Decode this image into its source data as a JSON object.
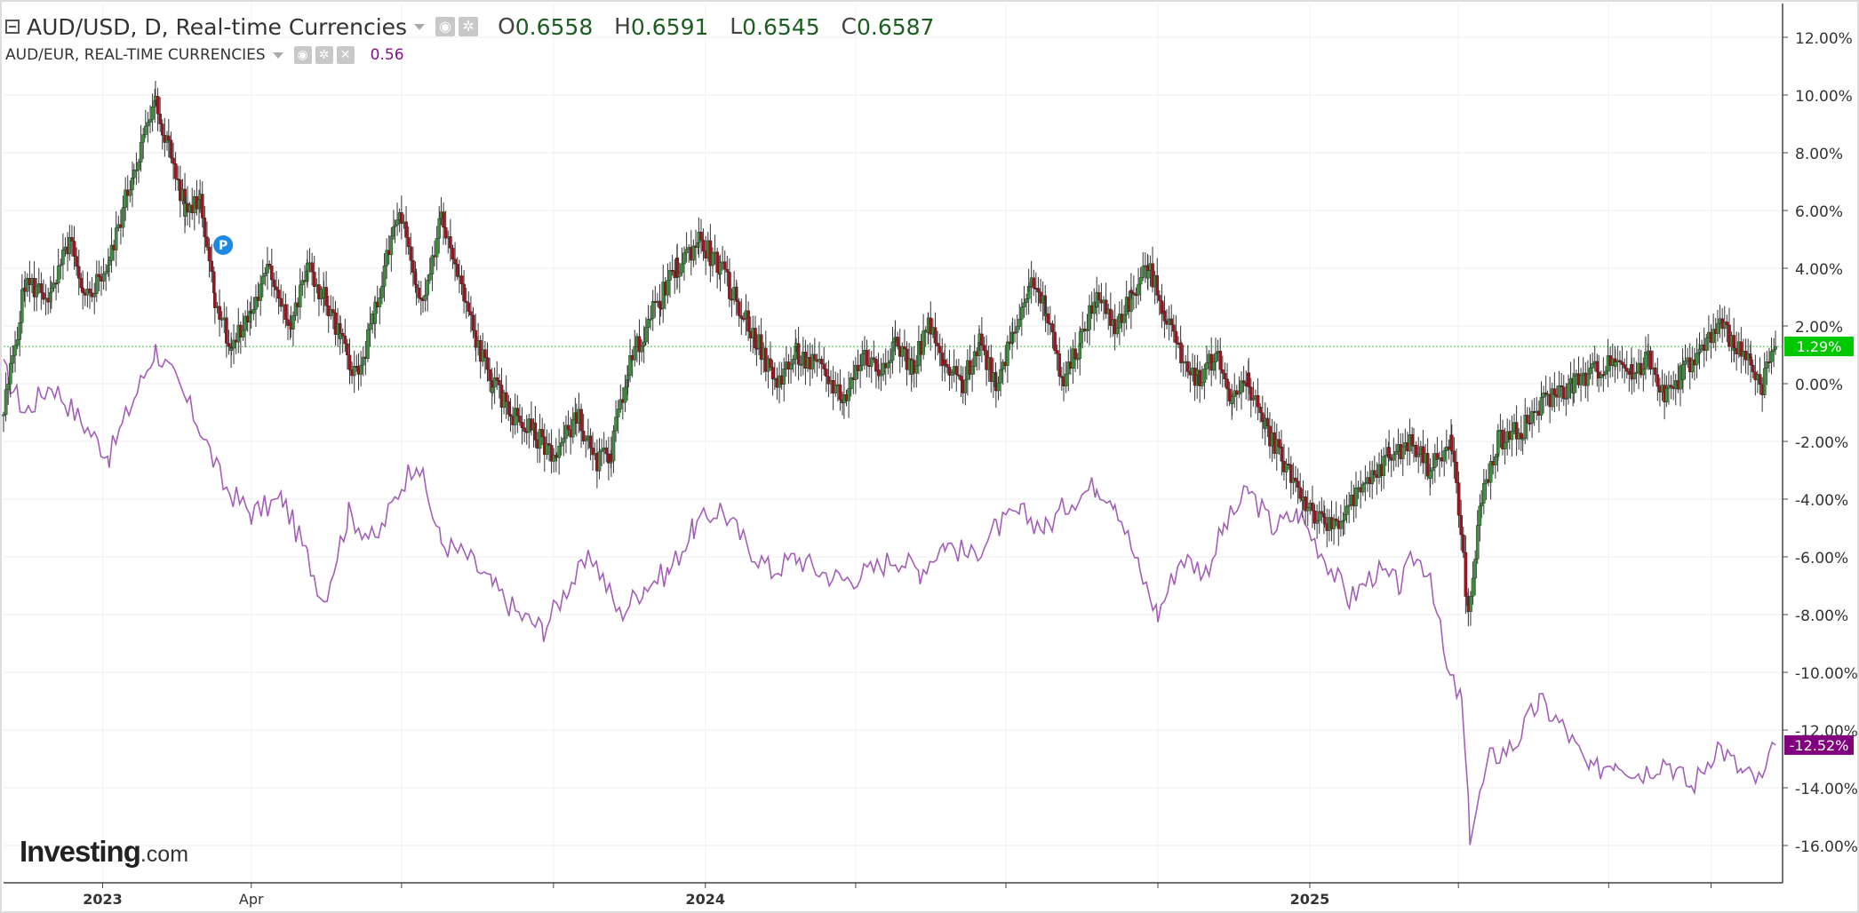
{
  "legend": {
    "main_title": "AUD/USD, D, Real-time Currencies",
    "open_label": "O",
    "open_value": "0.6558",
    "high_label": "H",
    "high_value": "0.6591",
    "low_label": "L",
    "low_value": "0.6545",
    "close_label": "C",
    "close_value": "0.6587",
    "compare_title": "AUD/EUR, REAL-TIME CURRENCIES",
    "compare_value": "0.56"
  },
  "logo": {
    "text": "Investing",
    "suffix": ".com"
  },
  "icons": {
    "collapse": "collapse-icon",
    "visibility": "eye-icon",
    "settings": "gear-icon",
    "remove": "close-icon",
    "marker": "p-marker-icon"
  },
  "colors": {
    "up_candle": "#3c8f3c",
    "down_candle": "#a0141e",
    "wick": "#333333",
    "compare_line": "#a35fb8",
    "last_price_up": "#00c800",
    "last_price_compare": "#800080",
    "marker": "#1e88e5",
    "grid": "#ececec",
    "axis": "#444444"
  },
  "chart_data": {
    "type": "candlestick",
    "x_range": [
      "2022-11-02",
      "2025-10-10"
    ],
    "y_range_pct": [
      -17,
      13
    ],
    "y_ticks": [
      "12.00%",
      "10.00%",
      "8.00%",
      "6.00%",
      "4.00%",
      "2.00%",
      "0.00%",
      "-2.00%",
      "-4.00%",
      "-6.00%",
      "-8.00%",
      "-10.00%",
      "-12.00%",
      "-14.00%",
      "-16.00%"
    ],
    "y_tick_values": [
      12,
      10,
      8,
      6,
      4,
      2,
      0,
      -2,
      -4,
      -6,
      -8,
      -10,
      -12,
      -14,
      -16
    ],
    "x_ticks": [
      {
        "label": "2023",
        "date": "2023-01-01",
        "bold": true
      },
      {
        "label": "Apr",
        "date": "2023-04-01",
        "bold": false
      },
      {
        "label": "",
        "date": "2023-07-01",
        "bold": false
      },
      {
        "label": "",
        "date": "2023-10-01",
        "bold": false
      },
      {
        "label": "2024",
        "date": "2024-01-01",
        "bold": true
      },
      {
        "label": "",
        "date": "2024-04-01",
        "bold": false
      },
      {
        "label": "",
        "date": "2024-07-01",
        "bold": false
      },
      {
        "label": "",
        "date": "2024-10-01",
        "bold": false
      },
      {
        "label": "2025",
        "date": "2025-01-01",
        "bold": true
      },
      {
        "label": "",
        "date": "2025-04-01",
        "bold": false
      },
      {
        "label": "",
        "date": "2025-07-01",
        "bold": false
      },
      {
        "label": "",
        "date": "2025-09-01",
        "bold": false
      }
    ],
    "baseline_pct": 1.29,
    "last_label_main": "1.29%",
    "last_label_compare": "-12.52%",
    "compare_last_pct": -12.52,
    "marker": {
      "label": "P",
      "date": "2023-03-15",
      "pct": 4.8
    },
    "series": [
      {
        "name": "AUD/USD",
        "kind": "candles",
        "points": [
          [
            "2022-11-02",
            -1.0
          ],
          [
            "2022-11-15",
            3.5
          ],
          [
            "2022-12-01",
            3.0
          ],
          [
            "2022-12-12",
            5.0
          ],
          [
            "2022-12-20",
            2.8
          ],
          [
            "2023-01-05",
            4.2
          ],
          [
            "2023-01-20",
            7.5
          ],
          [
            "2023-02-02",
            9.7
          ],
          [
            "2023-02-10",
            8.2
          ],
          [
            "2023-02-20",
            6.0
          ],
          [
            "2023-03-01",
            6.5
          ],
          [
            "2023-03-10",
            3.0
          ],
          [
            "2023-03-20",
            1.2
          ],
          [
            "2023-04-01",
            2.5
          ],
          [
            "2023-04-12",
            4.0
          ],
          [
            "2023-04-25",
            2.0
          ],
          [
            "2023-05-05",
            4.0
          ],
          [
            "2023-05-15",
            3.0
          ],
          [
            "2023-05-25",
            1.5
          ],
          [
            "2023-06-05",
            0.2
          ],
          [
            "2023-06-15",
            2.5
          ],
          [
            "2023-06-27",
            5.5
          ],
          [
            "2023-07-01",
            5.8
          ],
          [
            "2023-07-10",
            3.0
          ],
          [
            "2023-07-14",
            2.8
          ],
          [
            "2023-07-25",
            5.8
          ],
          [
            "2023-08-05",
            3.5
          ],
          [
            "2023-08-15",
            1.5
          ],
          [
            "2023-08-25",
            0.0
          ],
          [
            "2023-09-05",
            -1.0
          ],
          [
            "2023-09-20",
            -1.8
          ],
          [
            "2023-10-03",
            -2.5
          ],
          [
            "2023-10-15",
            -1.0
          ],
          [
            "2023-10-26",
            -2.8
          ],
          [
            "2023-11-05",
            -2.3
          ],
          [
            "2023-11-15",
            0.5
          ],
          [
            "2023-11-26",
            2.0
          ],
          [
            "2023-12-05",
            3.0
          ],
          [
            "2023-12-15",
            4.0
          ],
          [
            "2023-12-28",
            5.0
          ],
          [
            "2024-01-10",
            4.0
          ],
          [
            "2024-01-20",
            2.8
          ],
          [
            "2024-02-01",
            1.5
          ],
          [
            "2024-02-12",
            0.0
          ],
          [
            "2024-02-25",
            1.0
          ],
          [
            "2024-03-10",
            0.5
          ],
          [
            "2024-03-25",
            -0.5
          ],
          [
            "2024-04-05",
            1.0
          ],
          [
            "2024-04-15",
            0.5
          ],
          [
            "2024-04-25",
            1.5
          ],
          [
            "2024-05-05",
            0.5
          ],
          [
            "2024-05-15",
            2.0
          ],
          [
            "2024-05-25",
            0.5
          ],
          [
            "2024-06-05",
            0.0
          ],
          [
            "2024-06-15",
            1.5
          ],
          [
            "2024-06-25",
            0.0
          ],
          [
            "2024-07-05",
            1.8
          ],
          [
            "2024-07-15",
            3.5
          ],
          [
            "2024-07-25",
            2.5
          ],
          [
            "2024-08-05",
            0.0
          ],
          [
            "2024-08-15",
            1.5
          ],
          [
            "2024-08-25",
            3.0
          ],
          [
            "2024-09-05",
            2.0
          ],
          [
            "2024-09-15",
            3.0
          ],
          [
            "2024-09-25",
            4.0
          ],
          [
            "2024-10-05",
            2.5
          ],
          [
            "2024-10-15",
            1.0
          ],
          [
            "2024-10-25",
            0.2
          ],
          [
            "2024-11-05",
            1.0
          ],
          [
            "2024-11-15",
            -0.5
          ],
          [
            "2024-11-25",
            0.0
          ],
          [
            "2024-12-05",
            -1.5
          ],
          [
            "2024-12-15",
            -2.5
          ],
          [
            "2024-12-28",
            -4.0
          ],
          [
            "2025-01-10",
            -5.0
          ],
          [
            "2025-01-22",
            -4.5
          ],
          [
            "2025-02-05",
            -3.5
          ],
          [
            "2025-02-18",
            -2.5
          ],
          [
            "2025-03-05",
            -2.0
          ],
          [
            "2025-03-15",
            -3.0
          ],
          [
            "2025-03-28",
            -2.0
          ],
          [
            "2025-04-07",
            -8.0
          ],
          [
            "2025-04-15",
            -4.0
          ],
          [
            "2025-04-25",
            -2.0
          ],
          [
            "2025-05-10",
            -1.5
          ],
          [
            "2025-05-25",
            -0.5
          ],
          [
            "2025-06-10",
            0.0
          ],
          [
            "2025-06-25",
            0.5
          ],
          [
            "2025-07-05",
            1.0
          ],
          [
            "2025-07-15",
            0.3
          ],
          [
            "2025-07-25",
            1.0
          ],
          [
            "2025-08-05",
            -0.5
          ],
          [
            "2025-08-15",
            0.5
          ],
          [
            "2025-08-25",
            1.0
          ],
          [
            "2025-09-05",
            2.0
          ],
          [
            "2025-09-15",
            1.5
          ],
          [
            "2025-09-25",
            0.5
          ],
          [
            "2025-10-02",
            0.0
          ],
          [
            "2025-10-10",
            1.29
          ]
        ]
      },
      {
        "name": "AUD/EUR",
        "kind": "line",
        "points": [
          [
            "2022-11-02",
            0.5
          ],
          [
            "2022-11-15",
            -1.0
          ],
          [
            "2022-12-01",
            0.0
          ],
          [
            "2022-12-15",
            -1.0
          ],
          [
            "2023-01-05",
            -2.5
          ],
          [
            "2023-01-20",
            -0.5
          ],
          [
            "2023-02-02",
            1.2
          ],
          [
            "2023-02-15",
            0.0
          ],
          [
            "2023-03-01",
            -1.5
          ],
          [
            "2023-03-15",
            -3.5
          ],
          [
            "2023-04-01",
            -4.5
          ],
          [
            "2023-04-20",
            -4.0
          ],
          [
            "2023-05-05",
            -6.0
          ],
          [
            "2023-05-15",
            -7.5
          ],
          [
            "2023-05-30",
            -4.5
          ],
          [
            "2023-06-15",
            -5.5
          ],
          [
            "2023-07-01",
            -3.5
          ],
          [
            "2023-07-10",
            -2.6
          ],
          [
            "2023-07-25",
            -5.5
          ],
          [
            "2023-08-10",
            -6.0
          ],
          [
            "2023-08-25",
            -7.0
          ],
          [
            "2023-09-10",
            -8.0
          ],
          [
            "2023-09-25",
            -8.5
          ],
          [
            "2023-10-10",
            -7.0
          ],
          [
            "2023-10-25",
            -6.0
          ],
          [
            "2023-11-10",
            -8.0
          ],
          [
            "2023-11-25",
            -7.0
          ],
          [
            "2023-12-10",
            -6.5
          ],
          [
            "2023-12-25",
            -5.0
          ],
          [
            "2024-01-10",
            -4.3
          ],
          [
            "2024-01-25",
            -5.5
          ],
          [
            "2024-02-10",
            -6.5
          ],
          [
            "2024-02-25",
            -6.0
          ],
          [
            "2024-03-10",
            -6.5
          ],
          [
            "2024-03-25",
            -6.8
          ],
          [
            "2024-04-10",
            -6.5
          ],
          [
            "2024-04-25",
            -6.0
          ],
          [
            "2024-05-10",
            -6.5
          ],
          [
            "2024-05-25",
            -5.5
          ],
          [
            "2024-06-10",
            -6.0
          ],
          [
            "2024-06-25",
            -5.0
          ],
          [
            "2024-07-10",
            -4.5
          ],
          [
            "2024-07-25",
            -5.0
          ],
          [
            "2024-08-10",
            -4.0
          ],
          [
            "2024-08-25",
            -3.5
          ],
          [
            "2024-09-05",
            -4.0
          ],
          [
            "2024-09-20",
            -6.5
          ],
          [
            "2024-10-01",
            -8.0
          ],
          [
            "2024-10-15",
            -6.0
          ],
          [
            "2024-10-30",
            -6.5
          ],
          [
            "2024-11-10",
            -5.0
          ],
          [
            "2024-11-25",
            -3.7
          ],
          [
            "2024-12-10",
            -5.0
          ],
          [
            "2024-12-25",
            -4.5
          ],
          [
            "2025-01-10",
            -6.0
          ],
          [
            "2025-01-25",
            -7.5
          ],
          [
            "2025-02-10",
            -6.5
          ],
          [
            "2025-02-25",
            -7.0
          ],
          [
            "2025-03-05",
            -6.0
          ],
          [
            "2025-03-15",
            -6.5
          ],
          [
            "2025-03-25",
            -10.0
          ],
          [
            "2025-04-03",
            -11.0
          ],
          [
            "2025-04-08",
            -15.6
          ],
          [
            "2025-04-20",
            -13.0
          ],
          [
            "2025-05-05",
            -12.5
          ],
          [
            "2025-05-20",
            -11.0
          ],
          [
            "2025-06-05",
            -12.0
          ],
          [
            "2025-06-20",
            -13.5
          ],
          [
            "2025-07-05",
            -13.0
          ],
          [
            "2025-07-20",
            -13.5
          ],
          [
            "2025-08-05",
            -13.0
          ],
          [
            "2025-08-20",
            -14.0
          ],
          [
            "2025-09-05",
            -12.5
          ],
          [
            "2025-09-20",
            -13.5
          ],
          [
            "2025-10-02",
            -13.8
          ],
          [
            "2025-10-10",
            -12.52
          ]
        ]
      }
    ]
  }
}
